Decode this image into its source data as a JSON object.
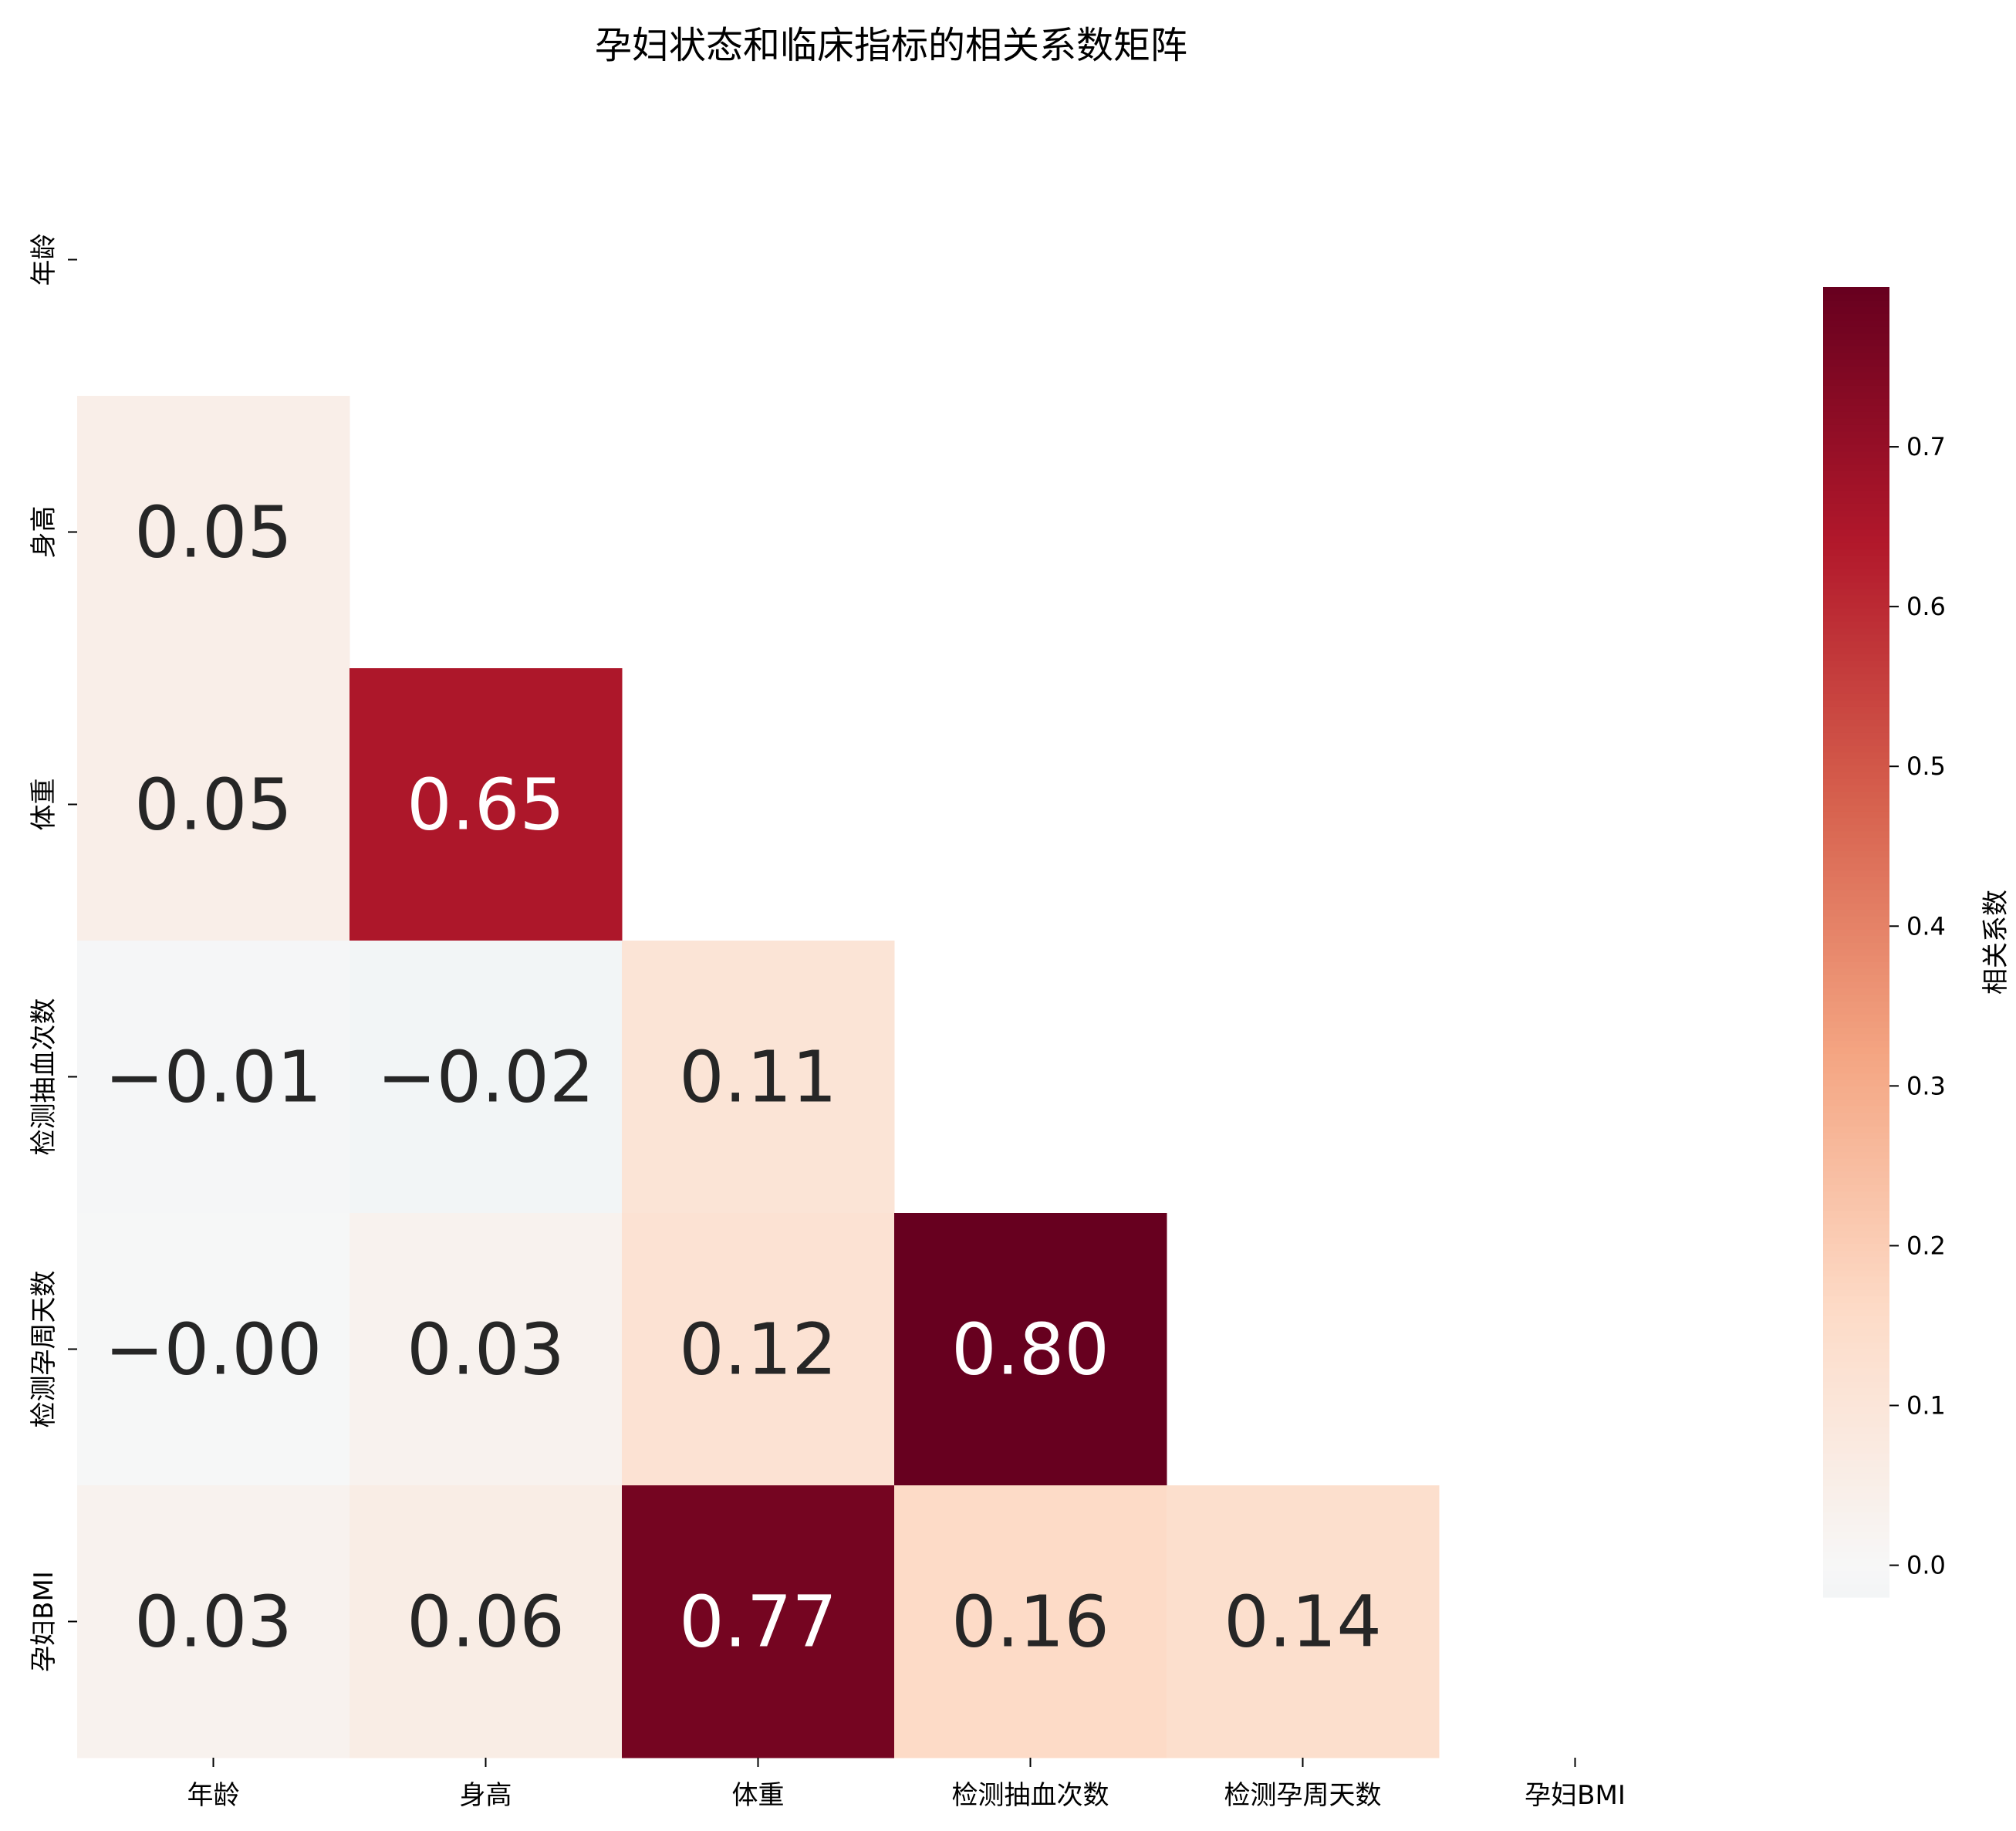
{
  "chart_data": {
    "type": "heatmap",
    "title": "孕妇状态和临床指标的相关系数矩阵",
    "variables": [
      "年龄",
      "身高",
      "体重",
      "检测抽血次数",
      "检测孕周天数",
      "孕妇BMI"
    ],
    "mask": "upper-triangle-including-diagonal",
    "cells": [
      {
        "row": "身高",
        "col": "年龄",
        "value": 0.05,
        "label": "0.05"
      },
      {
        "row": "体重",
        "col": "年龄",
        "value": 0.05,
        "label": "0.05"
      },
      {
        "row": "体重",
        "col": "身高",
        "value": 0.65,
        "label": "0.65"
      },
      {
        "row": "检测抽血次数",
        "col": "年龄",
        "value": -0.01,
        "label": "−0.01"
      },
      {
        "row": "检测抽血次数",
        "col": "身高",
        "value": -0.02,
        "label": "−0.02"
      },
      {
        "row": "检测抽血次数",
        "col": "体重",
        "value": 0.11,
        "label": "0.11"
      },
      {
        "row": "检测孕周天数",
        "col": "年龄",
        "value": -0.004,
        "label": "−0.00"
      },
      {
        "row": "检测孕周天数",
        "col": "身高",
        "value": 0.03,
        "label": "0.03"
      },
      {
        "row": "检测孕周天数",
        "col": "体重",
        "value": 0.12,
        "label": "0.12"
      },
      {
        "row": "检测孕周天数",
        "col": "检测抽血次数",
        "value": 0.8,
        "label": "0.80"
      },
      {
        "row": "孕妇BMI",
        "col": "年龄",
        "value": 0.03,
        "label": "0.03"
      },
      {
        "row": "孕妇BMI",
        "col": "身高",
        "value": 0.06,
        "label": "0.06"
      },
      {
        "row": "孕妇BMI",
        "col": "体重",
        "value": 0.77,
        "label": "0.77"
      },
      {
        "row": "孕妇BMI",
        "col": "检测抽血次数",
        "value": 0.16,
        "label": "0.16"
      },
      {
        "row": "孕妇BMI",
        "col": "检测孕周天数",
        "value": 0.14,
        "label": "0.14"
      }
    ],
    "colormap": "RdBu_r (centered at 0)",
    "vmin": -0.02,
    "vmax": 0.8,
    "colorbar": {
      "label": "相关系数",
      "ticks": [
        "0.0",
        "0.1",
        "0.2",
        "0.3",
        "0.4",
        "0.5",
        "0.6",
        "0.7"
      ]
    },
    "colors": {
      "low": "#f4f5f6",
      "mid": "#f7a889",
      "high": "#67001f"
    }
  }
}
